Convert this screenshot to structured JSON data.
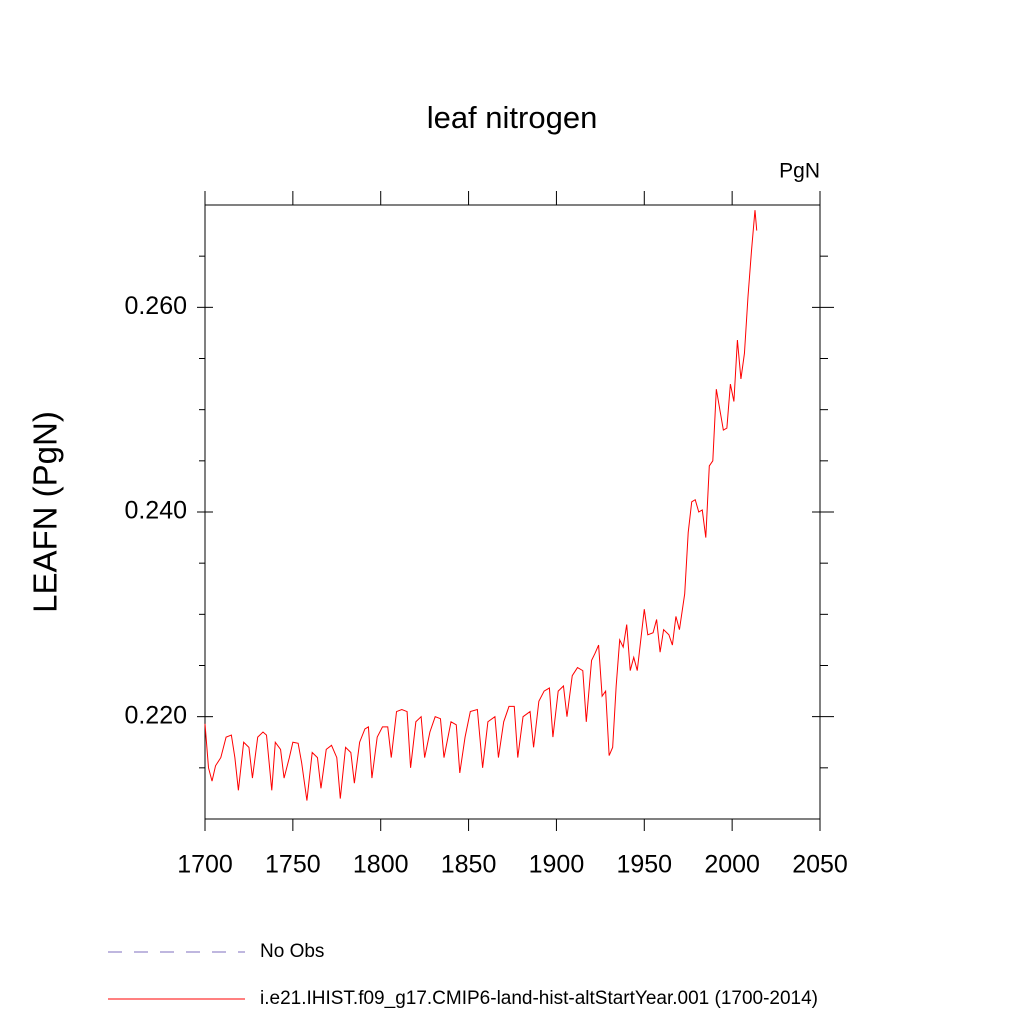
{
  "chart_data": {
    "type": "line",
    "title": "leaf nitrogen",
    "units": "PgN",
    "y_label": "LEAFN  (PgN)",
    "x": [
      1700,
      1702,
      1704,
      1706,
      1709,
      1712,
      1715,
      1717,
      1719,
      1722,
      1725,
      1727,
      1730,
      1733,
      1735,
      1738,
      1740,
      1743,
      1745,
      1748,
      1750,
      1753,
      1755,
      1758,
      1761,
      1764,
      1766,
      1769,
      1772,
      1775,
      1777,
      1780,
      1783,
      1785,
      1788,
      1791,
      1793,
      1795,
      1798,
      1801,
      1804,
      1806,
      1809,
      1812,
      1815,
      1817,
      1820,
      1823,
      1825,
      1828,
      1831,
      1834,
      1836,
      1840,
      1843,
      1845,
      1848,
      1851,
      1855,
      1858,
      1861,
      1865,
      1867,
      1870,
      1873,
      1876,
      1878,
      1881,
      1885,
      1887,
      1890,
      1893,
      1896,
      1898,
      1901,
      1904,
      1906,
      1909,
      1912,
      1915,
      1917,
      1920,
      1922,
      1924,
      1926,
      1928,
      1930,
      1932,
      1934,
      1936,
      1938,
      1940,
      1942,
      1944,
      1946,
      1948,
      1950,
      1952,
      1955,
      1957,
      1959,
      1961,
      1964,
      1966,
      1968,
      1970,
      1973,
      1975,
      1977,
      1979,
      1981,
      1983,
      1985,
      1987,
      1989,
      1991,
      1993,
      1995,
      1997,
      1999,
      2001,
      2003,
      2005,
      2007,
      2009,
      2011,
      2013,
      2014
    ],
    "series": [
      {
        "name": "i.e21.IHIST.f09_g17.CMIP6-land-hist-altStartYear.001 (1700-2014)",
        "color": "#ff0000",
        "values": [
          0.2193,
          0.215,
          0.2137,
          0.2152,
          0.216,
          0.218,
          0.2182,
          0.216,
          0.2128,
          0.2175,
          0.217,
          0.214,
          0.218,
          0.2185,
          0.2182,
          0.2128,
          0.2175,
          0.2168,
          0.214,
          0.216,
          0.2175,
          0.2174,
          0.2155,
          0.2118,
          0.2165,
          0.216,
          0.213,
          0.2168,
          0.2172,
          0.216,
          0.212,
          0.217,
          0.2165,
          0.2135,
          0.2175,
          0.2188,
          0.219,
          0.214,
          0.218,
          0.219,
          0.219,
          0.216,
          0.2205,
          0.2207,
          0.2205,
          0.215,
          0.2195,
          0.22,
          0.216,
          0.2185,
          0.22,
          0.2198,
          0.216,
          0.2195,
          0.2192,
          0.2145,
          0.218,
          0.2205,
          0.2207,
          0.215,
          0.2195,
          0.22,
          0.216,
          0.2195,
          0.221,
          0.221,
          0.216,
          0.22,
          0.2205,
          0.217,
          0.2215,
          0.2225,
          0.2228,
          0.218,
          0.2225,
          0.223,
          0.22,
          0.224,
          0.2248,
          0.2245,
          0.2195,
          0.2255,
          0.2262,
          0.227,
          0.222,
          0.2225,
          0.2162,
          0.217,
          0.223,
          0.2275,
          0.2268,
          0.229,
          0.2245,
          0.2258,
          0.2245,
          0.2275,
          0.2305,
          0.228,
          0.2282,
          0.2295,
          0.2263,
          0.2285,
          0.228,
          0.227,
          0.2298,
          0.2285,
          0.232,
          0.238,
          0.241,
          0.2412,
          0.24,
          0.2402,
          0.2375,
          0.2445,
          0.245,
          0.252,
          0.25,
          0.248,
          0.2482,
          0.2525,
          0.2508,
          0.2568,
          0.253,
          0.2555,
          0.261,
          0.2655,
          0.2695,
          0.2675
        ]
      }
    ],
    "legend_items": [
      {
        "name": "No Obs",
        "color": "#7f6fbf",
        "style": "dashed"
      }
    ],
    "xlim": [
      1700,
      2050
    ],
    "xticks": [
      1700,
      1750,
      1800,
      1850,
      1900,
      1950,
      2000,
      2050
    ],
    "ylim": [
      0.21,
      0.27
    ],
    "yticks": [
      {
        "value": 0.22,
        "label": "0.220"
      },
      {
        "value": 0.24,
        "label": "0.240"
      },
      {
        "value": 0.26,
        "label": "0.260"
      }
    ],
    "yminorticks": [
      0.215,
      0.225,
      0.23,
      0.235,
      0.245,
      0.25,
      0.255,
      0.265
    ]
  }
}
